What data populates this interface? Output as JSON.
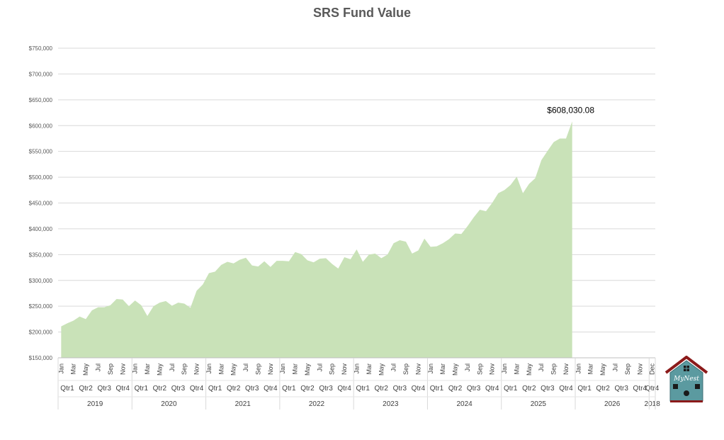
{
  "chart_data": {
    "type": "area",
    "title": "SRS Fund Value",
    "ylim": [
      150000,
      750000
    ],
    "y_ticks": [
      "$150,000",
      "$200,000",
      "$250,000",
      "$300,000",
      "$350,000",
      "$400,000",
      "$450,000",
      "$500,000",
      "$550,000",
      "$600,000",
      "$650,000",
      "$700,000",
      "$750,000"
    ],
    "grid": true,
    "color": "#c9e2b8",
    "x_axis": {
      "years": [
        {
          "label": "2019",
          "months": [
            "Jan",
            "Mar",
            "May",
            "Jul",
            "Sep",
            "Nov"
          ],
          "quarters": [
            "Qtr1",
            "Qtr2",
            "Qtr3",
            "Qtr4"
          ]
        },
        {
          "label": "2020",
          "months": [
            "Jan",
            "Mar",
            "May",
            "Jul",
            "Sep",
            "Nov"
          ],
          "quarters": [
            "Qtr1",
            "Qtr2",
            "Qtr3",
            "Qtr4"
          ]
        },
        {
          "label": "2021",
          "months": [
            "Jan",
            "Mar",
            "May",
            "Jul",
            "Sep",
            "Nov"
          ],
          "quarters": [
            "Qtr1",
            "Qtr2",
            "Qtr3",
            "Qtr4"
          ]
        },
        {
          "label": "2022",
          "months": [
            "Jan",
            "Mar",
            "May",
            "Jul",
            "Sep",
            "Nov"
          ],
          "quarters": [
            "Qtr1",
            "Qtr2",
            "Qtr3",
            "Qtr4"
          ]
        },
        {
          "label": "2023",
          "months": [
            "Jan",
            "Mar",
            "May",
            "Jul",
            "Sep",
            "Nov"
          ],
          "quarters": [
            "Qtr1",
            "Qtr2",
            "Qtr3",
            "Qtr4"
          ]
        },
        {
          "label": "2024",
          "months": [
            "Jan",
            "Mar",
            "May",
            "Jul",
            "Sep",
            "Nov"
          ],
          "quarters": [
            "Qtr1",
            "Qtr2",
            "Qtr3",
            "Qtr4"
          ]
        },
        {
          "label": "2025",
          "months": [
            "Jan",
            "Mar",
            "May",
            "Jul",
            "Sep",
            "Nov"
          ],
          "quarters": [
            "Qtr1",
            "Qtr2",
            "Qtr3",
            "Qtr4"
          ]
        },
        {
          "label": "2026",
          "months": [
            "Jan",
            "Mar",
            "May",
            "Jul",
            "Sep",
            "Nov"
          ],
          "quarters": [
            "Qtr1",
            "Qtr2",
            "Qtr3",
            "Qtr4"
          ]
        },
        {
          "label": "2018",
          "months": [
            "Dec"
          ],
          "quarters": [
            "Qtr4"
          ]
        }
      ]
    },
    "series": [
      {
        "values": [
          211000,
          217000,
          222000,
          230000,
          225000,
          242000,
          248000,
          248000,
          252000,
          264000,
          263000,
          250000,
          261000,
          252000,
          231000,
          250000,
          257000,
          260000,
          251000,
          257000,
          255000,
          247000,
          280000,
          292000,
          314000,
          317000,
          330000,
          336000,
          333000,
          340000,
          344000,
          329000,
          327000,
          337000,
          326000,
          338000,
          338000,
          337000,
          355000,
          351000,
          339000,
          335000,
          342000,
          343000,
          332000,
          323000,
          345000,
          341000,
          360000,
          336000,
          350000,
          352000,
          343000,
          350000,
          372000,
          378000,
          375000,
          352000,
          358000,
          381000,
          365000,
          366000,
          372000,
          380000,
          391000,
          390000,
          405000,
          422000,
          437000,
          434000,
          450000,
          469000,
          475000,
          485000,
          501000,
          469000,
          487000,
          498000,
          533000,
          551000,
          568000,
          575000,
          575000,
          608030.08
        ]
      }
    ],
    "annotations": [
      {
        "index": 83,
        "text": "$608,030.08"
      }
    ]
  },
  "logo": {
    "text": "MyNest"
  }
}
